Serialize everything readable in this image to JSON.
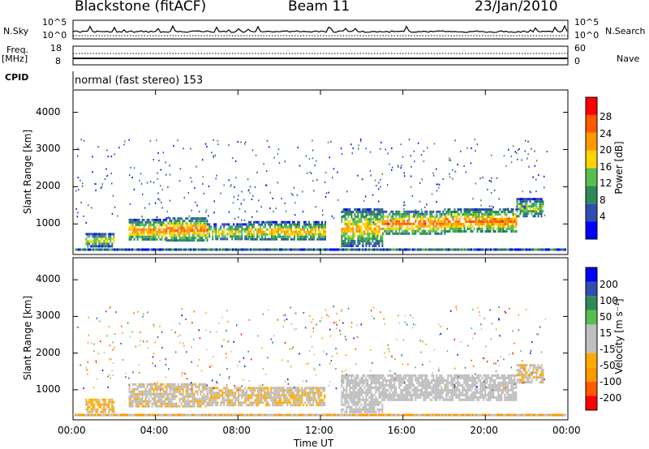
{
  "header": {
    "station": "Blackstone (fitACF)",
    "beam": "Beam 11",
    "date": "23/Jan/2010"
  },
  "strips": {
    "nsky_label": "N.Sky",
    "nsky_ticks": [
      "10^5",
      "10^0"
    ],
    "nsearch_label": "N.Search",
    "nsearch_ticks": [
      "10^5",
      "10^0"
    ],
    "freq_label": "Freq.",
    "freq_unit": "[MHz]",
    "freq_ticks": [
      "18",
      "8"
    ],
    "nave_label": "Nave",
    "nave_ticks": [
      "60",
      "0"
    ],
    "cpid_label": "CPID",
    "cpid_value": "normal (fast stereo) 153"
  },
  "colors": {
    "power": [
      "#0000ff",
      "#2e4fb0",
      "#2e8b57",
      "#55c050",
      "#ffd400",
      "#ff9900",
      "#ff5a00",
      "#ff0000"
    ],
    "velocity": [
      "#ff0000",
      "#ff5a00",
      "#ff9900",
      "#ffaa00",
      "#c0c0c0",
      "#bfbfbf",
      "#55c050",
      "#2e8b57",
      "#2e4fb0",
      "#0000ff"
    ],
    "ground_scatter": "#bdbdbd"
  },
  "power_colorbar": {
    "label": "Power [dB]",
    "ticks": [
      "28",
      "24",
      "20",
      "16",
      "12",
      "8",
      "4"
    ]
  },
  "velocity_colorbar": {
    "label": "Velocity [m s⁻¹]",
    "ticks": [
      "200",
      "100",
      "50",
      "15",
      "-15",
      "-50",
      "-100",
      "-200"
    ]
  },
  "chart_data": [
    {
      "type": "heatmap",
      "title": "Blackstone (fitACF)",
      "xlabel": "Time UT",
      "ylabel": "Slant Range [km]",
      "xticks": [
        "00:00",
        "04:00",
        "08:00",
        "12:00",
        "16:00",
        "20:00",
        "00:00"
      ],
      "yticks": [
        "1000",
        "2000",
        "3000",
        "4000"
      ],
      "xlim_hours": [
        0,
        24
      ],
      "ylim_km": [
        180,
        4600
      ],
      "colorbar": "Power [dB]",
      "clim": [
        0,
        30
      ],
      "echo_bands": [
        {
          "t": [
            0.6,
            2.0
          ],
          "range_km": [
            420,
            760
          ],
          "power_db": 18
        },
        {
          "t": [
            2.7,
            4.5
          ],
          "range_km": [
            560,
            1140
          ],
          "power_db": 22
        },
        {
          "t": [
            4.5,
            6.5
          ],
          "range_km": [
            560,
            1180
          ],
          "power_db": 24
        },
        {
          "t": [
            6.5,
            8.5
          ],
          "range_km": [
            580,
            1020
          ],
          "power_db": 18
        },
        {
          "t": [
            8.5,
            12.2
          ],
          "range_km": [
            580,
            1080
          ],
          "power_db": 20
        },
        {
          "t": [
            13.0,
            15.0
          ],
          "range_km": [
            420,
            1420
          ],
          "power_db": 20
        },
        {
          "t": [
            15.0,
            18.0
          ],
          "range_km": [
            720,
            1360
          ],
          "power_db": 24
        },
        {
          "t": [
            18.0,
            21.5
          ],
          "range_km": [
            780,
            1420
          ],
          "power_db": 24
        },
        {
          "t": [
            21.5,
            22.8
          ],
          "range_km": [
            1200,
            1700
          ],
          "power_db": 16
        }
      ]
    },
    {
      "type": "heatmap",
      "xlabel": "Time UT",
      "ylabel": "Slant Range [km]",
      "xticks": [
        "00:00",
        "04:00",
        "08:00",
        "12:00",
        "16:00",
        "20:00",
        "00:00"
      ],
      "yticks": [
        "1000",
        "2000",
        "3000",
        "4000"
      ],
      "xlim_hours": [
        0,
        24
      ],
      "ylim_km": [
        180,
        4600
      ],
      "colorbar": "Velocity [m s⁻¹]",
      "clim": [
        -250,
        250
      ],
      "echo_bands": [
        {
          "t": [
            0.6,
            2.0
          ],
          "range_km": [
            420,
            760
          ],
          "velocity_ms": -60,
          "ground_scatter": false
        },
        {
          "t": [
            2.7,
            6.5
          ],
          "range_km": [
            560,
            1180
          ],
          "velocity_ms": -60,
          "ground_scatter": true
        },
        {
          "t": [
            6.5,
            12.2
          ],
          "range_km": [
            580,
            1080
          ],
          "velocity_ms": -70,
          "ground_scatter": true
        },
        {
          "t": [
            13.0,
            15.0
          ],
          "range_km": [
            420,
            1420
          ],
          "velocity_ms": -10,
          "ground_scatter": true
        },
        {
          "t": [
            15.0,
            21.5
          ],
          "range_km": [
            720,
            1420
          ],
          "velocity_ms": -5,
          "ground_scatter": true
        },
        {
          "t": [
            21.5,
            22.8
          ],
          "range_km": [
            1200,
            1700
          ],
          "velocity_ms": -40,
          "ground_scatter": false
        }
      ]
    }
  ]
}
